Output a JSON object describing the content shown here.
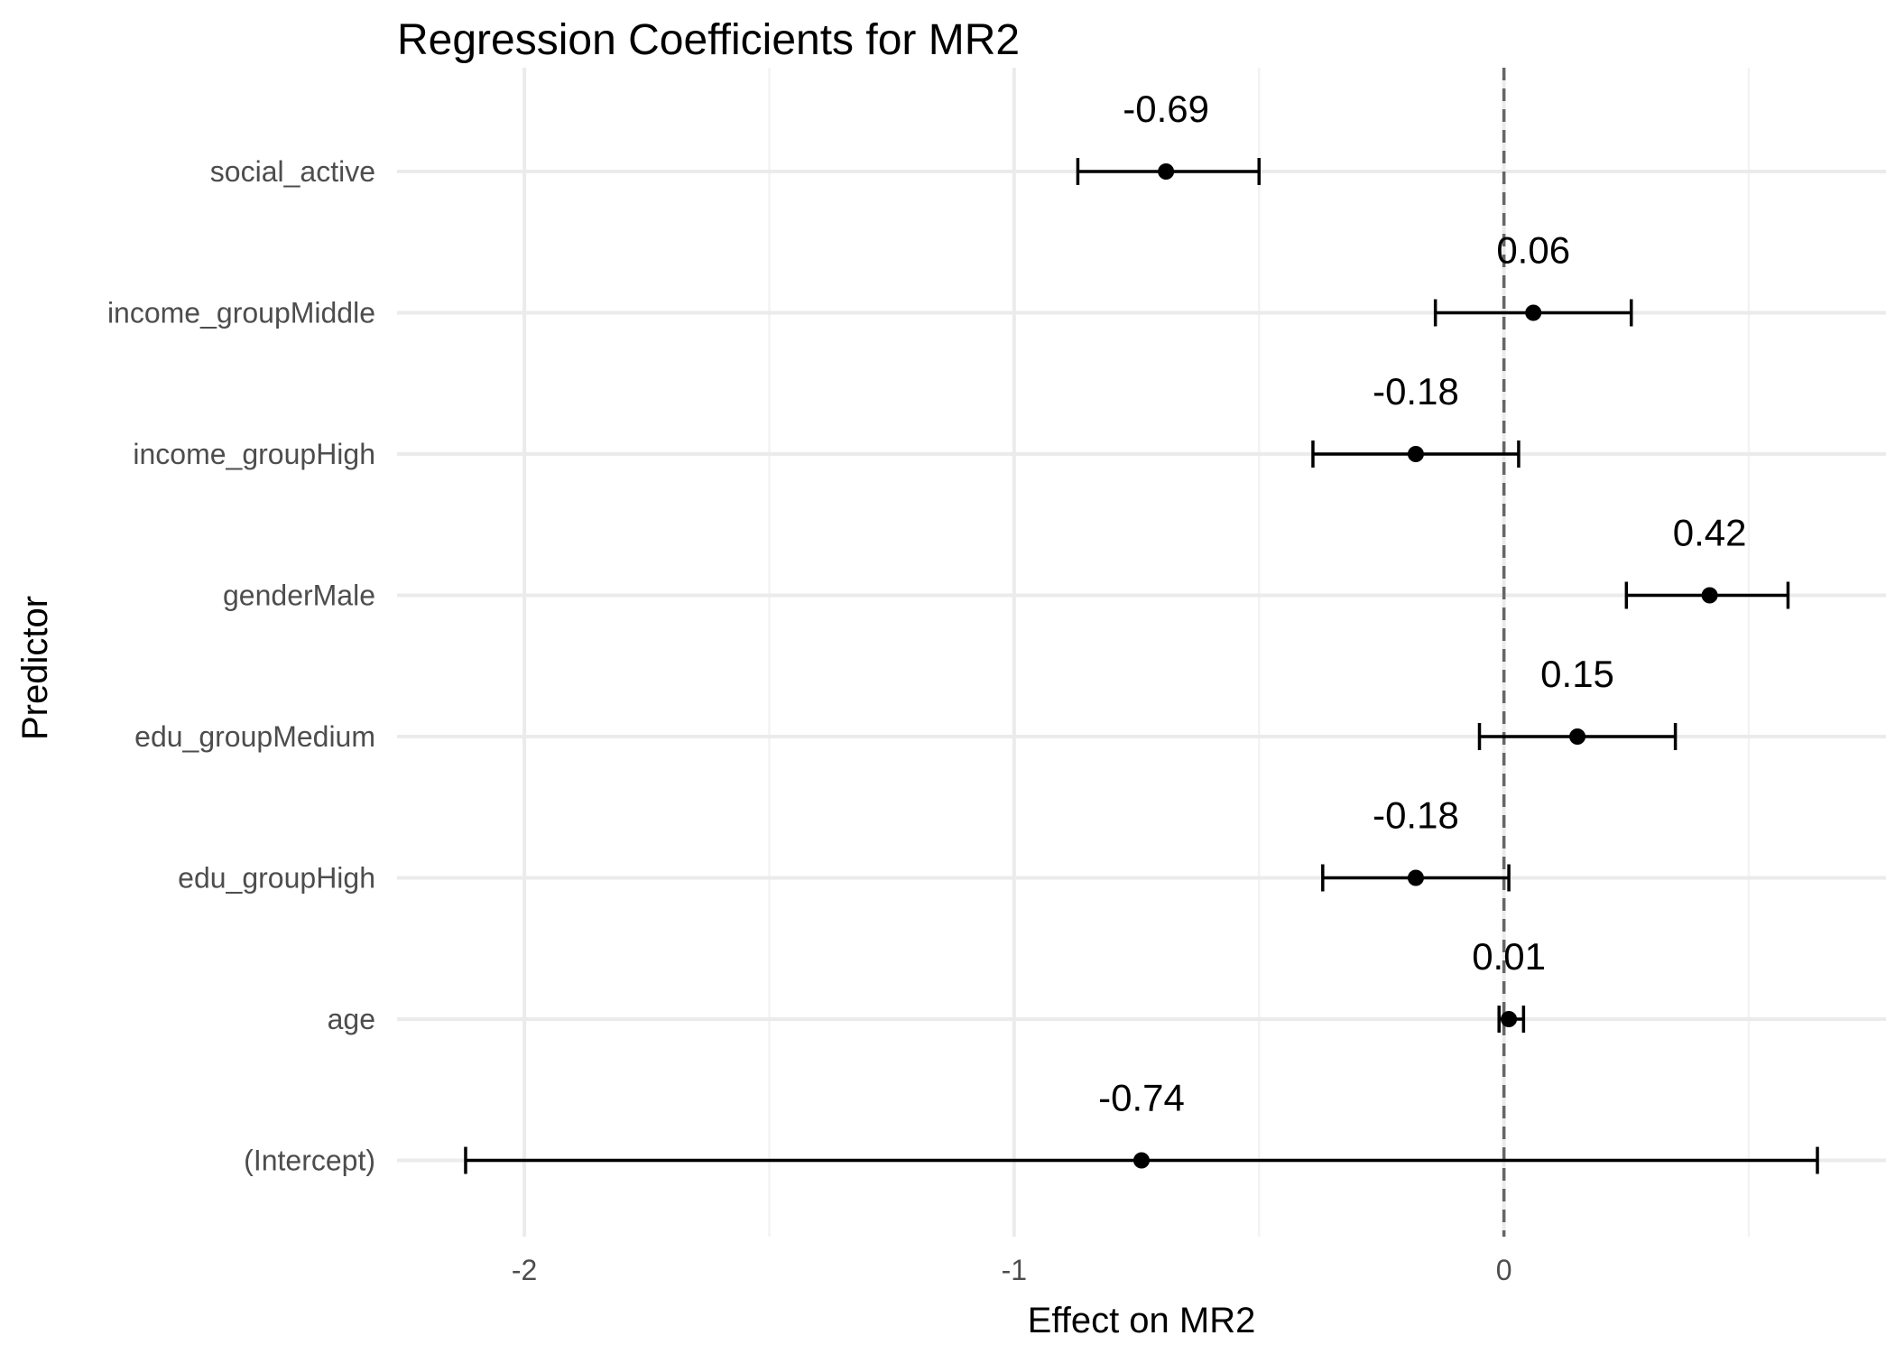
{
  "chart_data": {
    "type": "coefficient-plot",
    "title": "Regression Coefficients for MR2",
    "xlabel": "Effect on MR2",
    "ylabel": "Predictor",
    "xlim": [
      -2.26,
      0.78
    ],
    "x_ticks": [
      -2,
      -1,
      0
    ],
    "x_tick_labels": [
      "-2",
      "-1",
      "0"
    ],
    "x_minor_ticks": [
      -1.5,
      -0.5,
      0.5
    ],
    "reference_line": {
      "x": 0,
      "style": "dashed",
      "color": "#666666"
    },
    "grid": true,
    "predictors": [
      {
        "name": "social_active",
        "estimate": -0.69,
        "ci_low": -0.87,
        "ci_high": -0.5,
        "label": "-0.69"
      },
      {
        "name": "income_groupMiddle",
        "estimate": 0.06,
        "ci_low": -0.14,
        "ci_high": 0.26,
        "label": "0.06"
      },
      {
        "name": "income_groupHigh",
        "estimate": -0.18,
        "ci_low": -0.39,
        "ci_high": 0.03,
        "label": "-0.18"
      },
      {
        "name": "genderMale",
        "estimate": 0.42,
        "ci_low": 0.25,
        "ci_high": 0.58,
        "label": "0.42"
      },
      {
        "name": "edu_groupMedium",
        "estimate": 0.15,
        "ci_low": -0.05,
        "ci_high": 0.35,
        "label": "0.15"
      },
      {
        "name": "edu_groupHigh",
        "estimate": -0.18,
        "ci_low": -0.37,
        "ci_high": 0.01,
        "label": "-0.18"
      },
      {
        "name": "age",
        "estimate": 0.01,
        "ci_low": -0.01,
        "ci_high": 0.04,
        "label": "0.01"
      },
      {
        "name": "(Intercept)",
        "estimate": -0.74,
        "ci_low": -2.12,
        "ci_high": 0.64,
        "label": "-0.74"
      }
    ],
    "colors": {
      "point": "#000000",
      "errorbar": "#000000",
      "grid": "#ebebeb",
      "reference": "#666666"
    }
  }
}
